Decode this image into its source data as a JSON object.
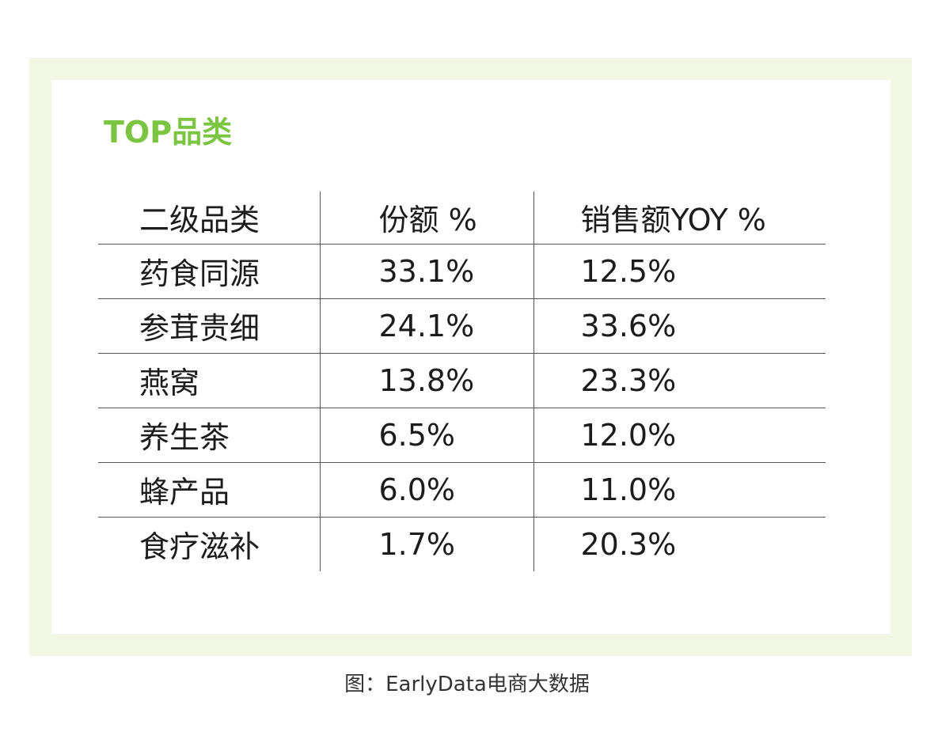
{
  "title": "TOP品类",
  "table": {
    "headers": [
      "二级品类",
      "份额 %",
      "销售额YOY %"
    ],
    "rows": [
      [
        "药食同源",
        "33.1%",
        "12.5%"
      ],
      [
        "参茸贵细",
        "24.1%",
        "33.6%"
      ],
      [
        "燕窝",
        "13.8%",
        "23.3%"
      ],
      [
        "养生茶",
        "6.5%",
        "12.0%"
      ],
      [
        "蜂产品",
        "6.0%",
        "11.0%"
      ],
      [
        "食疗滋补",
        "1.7%",
        "20.3%"
      ]
    ]
  },
  "caption": "图：EarlyData电商大数据",
  "colors": {
    "title": "#7bc542",
    "frame": "#f1f7e2",
    "text": "#1c1c1c",
    "rule": "#555555"
  }
}
